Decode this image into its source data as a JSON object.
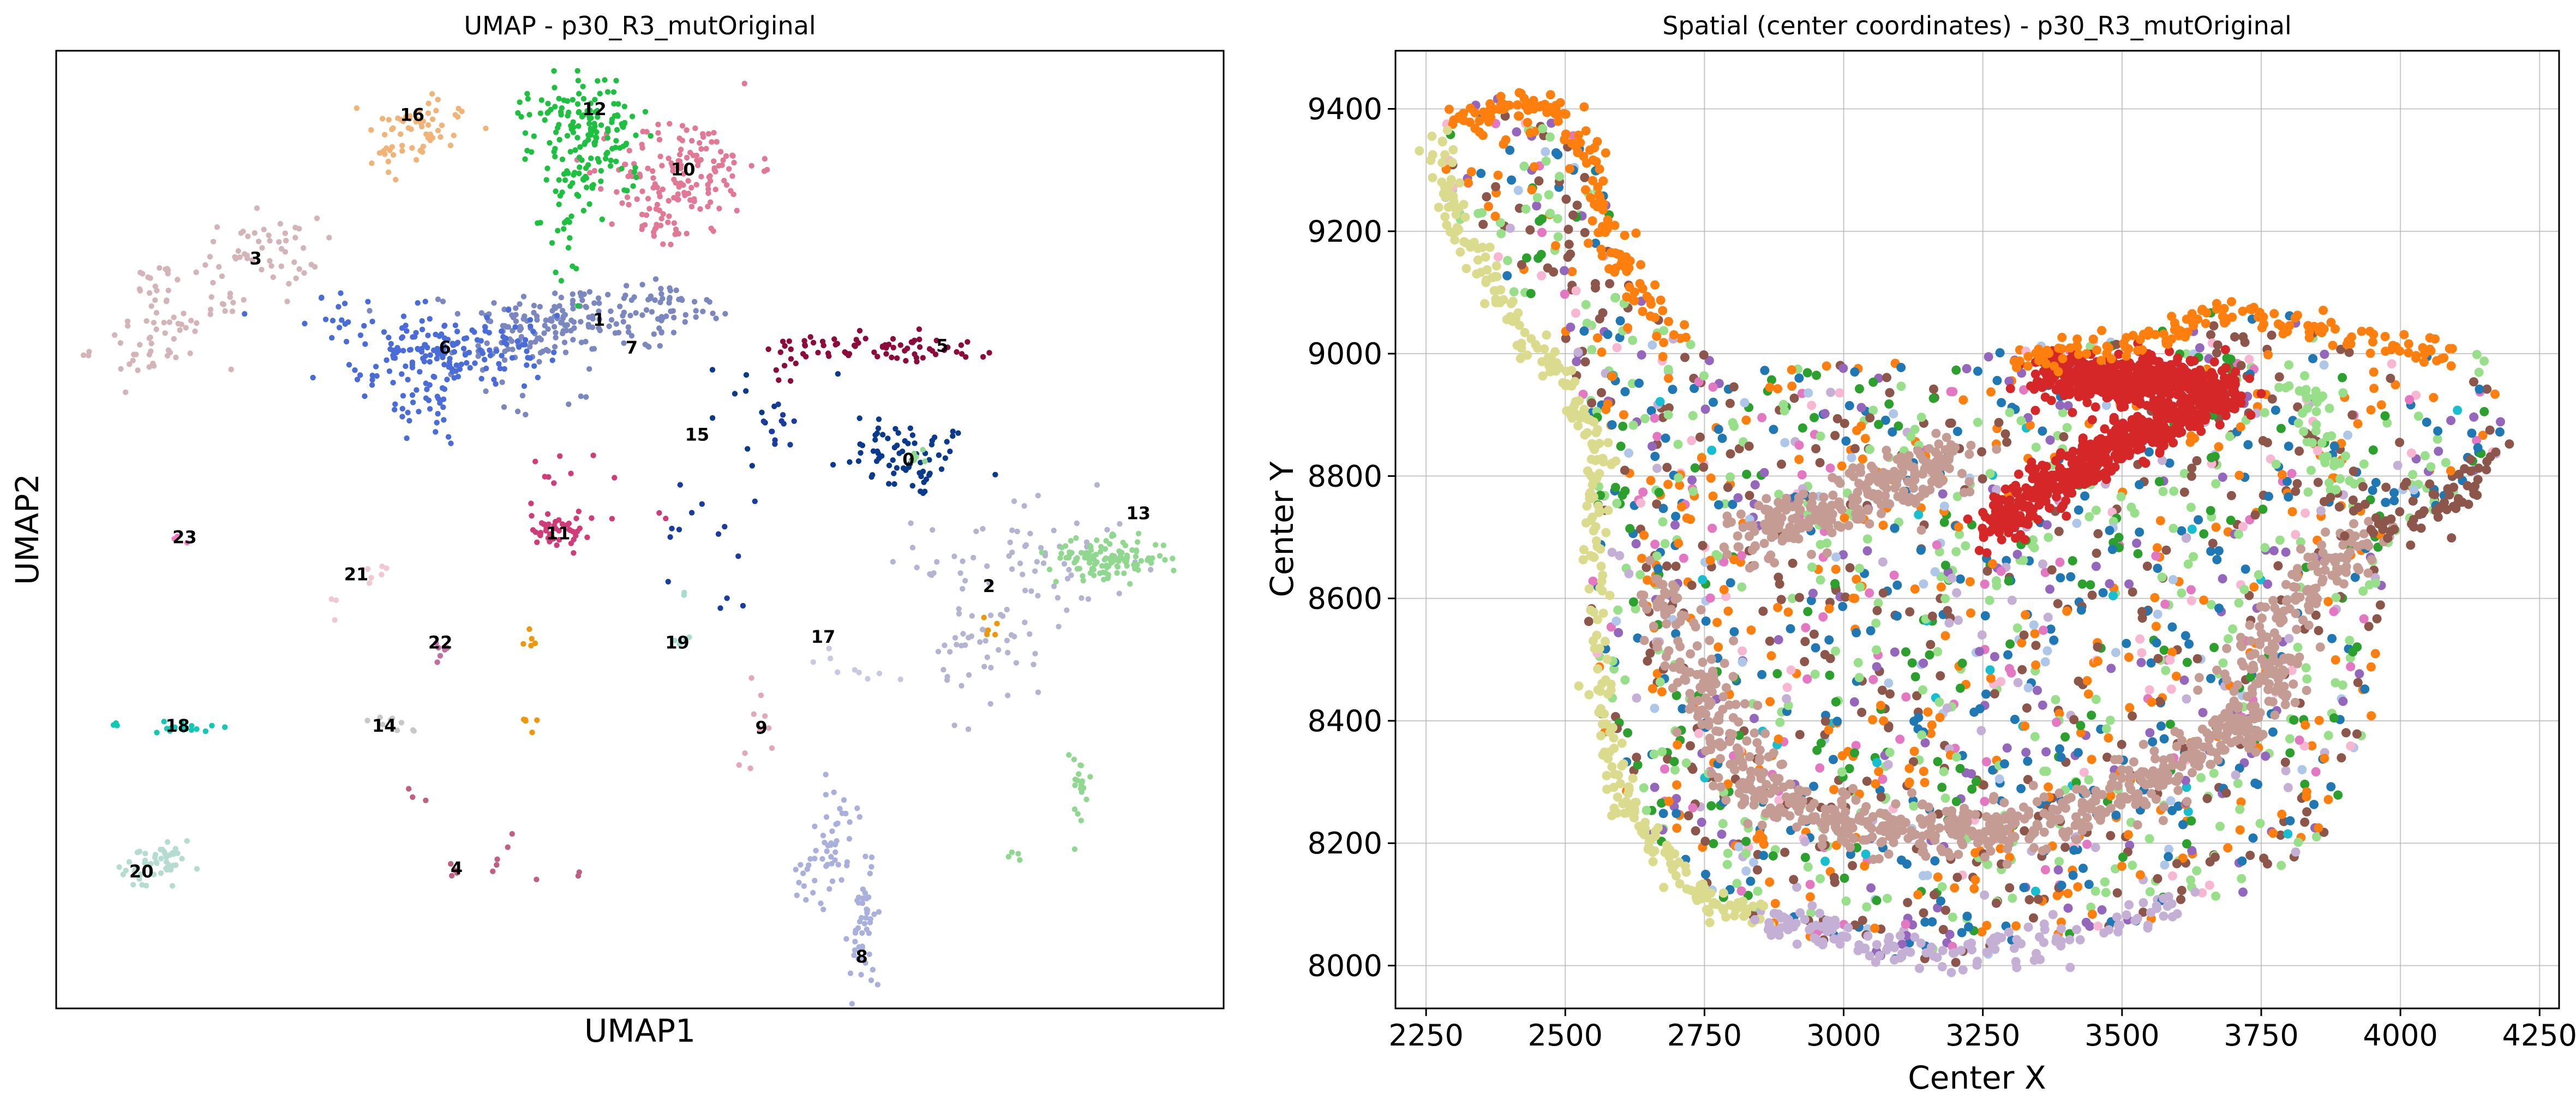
{
  "chart_data": [
    {
      "type": "scatter",
      "title": "UMAP - p30_R3_mutOriginal",
      "xlabel": "UMAP1",
      "ylabel": "UMAP2",
      "grid": false,
      "ticks": false,
      "cluster_labels": [
        {
          "label": "16",
          "x": 0.305,
          "y": 0.932
        },
        {
          "label": "12",
          "x": 0.461,
          "y": 0.938
        },
        {
          "label": "10",
          "x": 0.537,
          "y": 0.875
        },
        {
          "label": "3",
          "x": 0.171,
          "y": 0.782
        },
        {
          "label": "1",
          "x": 0.465,
          "y": 0.718
        },
        {
          "label": "6",
          "x": 0.333,
          "y": 0.689
        },
        {
          "label": "7",
          "x": 0.493,
          "y": 0.689
        },
        {
          "label": "5",
          "x": 0.759,
          "y": 0.691
        },
        {
          "label": "15",
          "x": 0.549,
          "y": 0.598
        },
        {
          "label": "0",
          "x": 0.73,
          "y": 0.572
        },
        {
          "label": "23",
          "x": 0.11,
          "y": 0.491
        },
        {
          "label": "11",
          "x": 0.43,
          "y": 0.495
        },
        {
          "label": "13",
          "x": 0.927,
          "y": 0.516
        },
        {
          "label": "21",
          "x": 0.257,
          "y": 0.452
        },
        {
          "label": "2",
          "x": 0.799,
          "y": 0.44
        },
        {
          "label": "22",
          "x": 0.329,
          "y": 0.381
        },
        {
          "label": "19",
          "x": 0.532,
          "y": 0.381
        },
        {
          "label": "17",
          "x": 0.657,
          "y": 0.387
        },
        {
          "label": "18",
          "x": 0.104,
          "y": 0.294
        },
        {
          "label": "14",
          "x": 0.281,
          "y": 0.294
        },
        {
          "label": "9",
          "x": 0.604,
          "y": 0.292
        },
        {
          "label": "20",
          "x": 0.073,
          "y": 0.142
        },
        {
          "label": "4",
          "x": 0.343,
          "y": 0.145
        },
        {
          "label": "8",
          "x": 0.69,
          "y": 0.053
        }
      ],
      "clusters": [
        {
          "label": "0",
          "color": "#0a3a8c",
          "blobs": [
            [
              0.735,
              0.572,
              0.025,
              0.02,
              60
            ],
            [
              0.7,
              0.6,
              0.015,
              0.012,
              10
            ]
          ],
          "scatter": [
            [
              0.62,
              0.62,
              0.09,
              0.06,
              14
            ]
          ]
        },
        {
          "label": "1",
          "color": "#7b88c0",
          "blobs": [
            [
              0.43,
              0.72,
              0.04,
              0.018,
              120
            ],
            [
              0.385,
              0.69,
              0.03,
              0.012,
              40
            ]
          ],
          "scatter": [
            [
              0.42,
              0.65,
              0.04,
              0.03,
              10
            ]
          ]
        },
        {
          "label": "2",
          "color": "#b4b4d2",
          "blobs": [
            [
              0.83,
              0.465,
              0.045,
              0.035,
              70
            ],
            [
              0.795,
              0.39,
              0.025,
              0.015,
              20
            ]
          ],
          "scatter": [
            [
              0.8,
              0.35,
              0.05,
              0.06,
              20
            ]
          ]
        },
        {
          "label": "3",
          "color": "#d2b4b9",
          "blobs": [
            [
              0.175,
              0.79,
              0.025,
              0.018,
              50
            ],
            [
              0.08,
              0.69,
              0.025,
              0.02,
              40
            ]
          ],
          "scatter": [
            [
              0.12,
              0.745,
              0.05,
              0.03,
              40
            ]
          ]
        },
        {
          "label": "4",
          "color": "#c06080",
          "blobs": [
            [
              0.343,
              0.145,
              0.004,
              0.004,
              4
            ]
          ],
          "scatter": [
            [
              0.41,
              0.16,
              0.06,
              0.03,
              8
            ],
            [
              0.31,
              0.22,
              0.01,
              0.01,
              3
            ]
          ]
        },
        {
          "label": "5",
          "color": "#8c0a3c",
          "blobs": [
            [
              0.72,
              0.69,
              0.04,
              0.01,
              50
            ]
          ],
          "scatter": [
            [
              0.65,
              0.69,
              0.03,
              0.012,
              20
            ],
            [
              0.625,
              0.67,
              0.01,
              0.015,
              6
            ]
          ]
        },
        {
          "label": "6",
          "color": "#4a6cd8",
          "blobs": [
            [
              0.335,
              0.69,
              0.045,
              0.016,
              150
            ],
            [
              0.31,
              0.65,
              0.03,
              0.025,
              40
            ]
          ],
          "scatter": [
            [
              0.23,
              0.73,
              0.02,
              0.02,
              10
            ],
            [
              0.32,
              0.61,
              0.025,
              0.02,
              12
            ]
          ]
        },
        {
          "label": "7",
          "color": "#7b88c0",
          "blobs": [
            [
              0.525,
              0.735,
              0.02,
              0.014,
              50
            ]
          ],
          "scatter": [
            [
              0.5,
              0.7,
              0.02,
              0.012,
              10
            ]
          ]
        },
        {
          "label": "8",
          "color": "#aab0dc",
          "blobs": [
            [
              0.69,
              0.08,
              0.006,
              0.035,
              50
            ],
            [
              0.665,
              0.15,
              0.012,
              0.025,
              30
            ],
            [
              0.67,
              0.2,
              0.01,
              0.02,
              15
            ]
          ],
          "scatter": [
            [
              0.64,
              0.13,
              0.01,
              0.03,
              8
            ]
          ]
        },
        {
          "label": "9",
          "color": "#e0a8b8",
          "blobs": [
            [
              0.604,
              0.31,
              0.008,
              0.02,
              8
            ]
          ],
          "scatter": [
            [
              0.59,
              0.26,
              0.006,
              0.015,
              3
            ]
          ]
        },
        {
          "label": "10",
          "color": "#e07896",
          "blobs": [
            [
              0.54,
              0.88,
              0.03,
              0.025,
              120
            ],
            [
              0.51,
              0.83,
              0.015,
              0.02,
              30
            ]
          ],
          "scatter": [
            [
              0.54,
              0.83,
              0.03,
              0.03,
              15
            ]
          ]
        },
        {
          "label": "11",
          "color": "#d03c78",
          "blobs": [
            [
              0.43,
              0.5,
              0.012,
              0.01,
              40
            ]
          ],
          "scatter": [
            [
              0.44,
              0.54,
              0.04,
              0.04,
              16
            ],
            [
              0.52,
              0.51,
              0.005,
              0.01,
              2
            ]
          ]
        },
        {
          "label": "12",
          "color": "#1ec040",
          "blobs": [
            [
              0.455,
              0.92,
              0.025,
              0.03,
              150
            ],
            [
              0.44,
              0.83,
              0.012,
              0.03,
              30
            ]
          ],
          "scatter": [
            [
              0.46,
              0.88,
              0.03,
              0.04,
              15
            ]
          ]
        },
        {
          "label": "13",
          "color": "#90d890",
          "blobs": [
            [
              0.9,
              0.47,
              0.025,
              0.01,
              120
            ],
            [
              0.875,
              0.225,
              0.006,
              0.025,
              20
            ]
          ],
          "scatter": [
            [
              0.82,
              0.16,
              0.006,
              0.006,
              4
            ],
            [
              0.74,
              0.58,
              0.01,
              0.01,
              6
            ]
          ]
        },
        {
          "label": "14",
          "color": "#c8c8c8",
          "blobs": [
            [
              0.281,
              0.3,
              0.01,
              0.01,
              6
            ]
          ],
          "scatter": [
            [
              0.3,
              0.29,
              0.02,
              0.01,
              3
            ]
          ]
        },
        {
          "label": "15",
          "color": "#1a3ca0",
          "blobs": [
            [
              0.62,
              0.61,
              0.008,
              0.015,
              10
            ]
          ],
          "scatter": [
            [
              0.56,
              0.48,
              0.04,
              0.08,
              14
            ]
          ]
        },
        {
          "label": "16",
          "color": "#f0b478",
          "blobs": [
            [
              0.315,
              0.92,
              0.02,
              0.014,
              45
            ],
            [
              0.285,
              0.895,
              0.008,
              0.01,
              10
            ]
          ],
          "scatter": [
            [
              0.3,
              0.9,
              0.02,
              0.015,
              8
            ]
          ]
        },
        {
          "label": "17",
          "color": "#c8c8e0",
          "blobs": [
            [
              0.657,
              0.36,
              0.01,
              0.01,
              4
            ]
          ],
          "scatter": [
            [
              0.7,
              0.35,
              0.03,
              0.03,
              5
            ]
          ]
        },
        {
          "label": "18",
          "color": "#10c8b4",
          "blobs": [
            [
              0.11,
              0.294,
              0.012,
              0.004,
              18
            ],
            [
              0.048,
              0.297,
              0.003,
              0.003,
              3
            ]
          ],
          "scatter": []
        },
        {
          "label": "19",
          "color": "#a8dcd0",
          "blobs": [
            [
              0.532,
              0.381,
              0.006,
              0.005,
              5
            ]
          ],
          "scatter": [
            [
              0.54,
              0.43,
              0.004,
              0.01,
              2
            ]
          ]
        },
        {
          "label": "20",
          "color": "#b4dcd0",
          "blobs": [
            [
              0.085,
              0.145,
              0.018,
              0.012,
              40
            ]
          ],
          "scatter": [
            [
              0.095,
              0.165,
              0.01,
              0.01,
              10
            ]
          ]
        },
        {
          "label": "21",
          "color": "#f0c8d4",
          "blobs": [
            [
              0.28,
              0.46,
              0.01,
              0.006,
              6
            ]
          ],
          "scatter": [
            [
              0.24,
              0.42,
              0.006,
              0.015,
              3
            ]
          ]
        },
        {
          "label": "22",
          "color": "#c070a0",
          "blobs": [
            [
              0.329,
              0.37,
              0.006,
              0.008,
              6
            ]
          ],
          "scatter": []
        },
        {
          "label": "23",
          "color": "#ff78c8",
          "blobs": [
            [
              0.11,
              0.491,
              0.004,
              0.003,
              3
            ]
          ],
          "scatter": []
        },
        {
          "label": "orange",
          "color": "#f0960a",
          "blobs": [
            [
              0.405,
              0.385,
              0.004,
              0.006,
              5
            ],
            [
              0.405,
              0.295,
              0.004,
              0.006,
              5
            ],
            [
              0.795,
              0.395,
              0.006,
              0.008,
              5
            ]
          ],
          "scatter": []
        }
      ]
    },
    {
      "type": "scatter",
      "title": "Spatial (center coordinates) - p30_R3_mutOriginal",
      "xlabel": "Center X",
      "ylabel": "Center Y",
      "xlim": [
        2195,
        4285
      ],
      "ylim": [
        7930,
        9495
      ],
      "xticks": [
        2250,
        2500,
        2750,
        3000,
        3250,
        3500,
        3750,
        4000,
        4250
      ],
      "yticks": [
        8000,
        8200,
        8400,
        8600,
        8800,
        9000,
        9200,
        9400
      ],
      "xtick_labels": [
        "2250",
        "2500",
        "2750",
        "3000",
        "3250",
        "3500",
        "3750",
        "4000",
        "4250"
      ],
      "ytick_labels": [
        "8000",
        "8200",
        "8400",
        "8600",
        "8800",
        "9000",
        "9200",
        "9400"
      ],
      "grid": true,
      "categories": [
        {
          "color": "#1f77b4",
          "name": ""
        },
        {
          "color": "#ff7f0e",
          "name": ""
        },
        {
          "color": "#2ca02c",
          "name": ""
        },
        {
          "color": "#d62728",
          "name": ""
        },
        {
          "color": "#9467bd",
          "name": ""
        },
        {
          "color": "#8c564b",
          "name": ""
        },
        {
          "color": "#e377c2",
          "name": ""
        },
        {
          "color": "#c49c94",
          "name": ""
        },
        {
          "color": "#98df8a",
          "name": ""
        },
        {
          "color": "#dbdb8d",
          "name": ""
        },
        {
          "color": "#aec7e8",
          "name": ""
        },
        {
          "color": "#c5b0d5",
          "name": ""
        },
        {
          "color": "#f7b6d2",
          "name": ""
        },
        {
          "color": "#17becf",
          "name": ""
        }
      ],
      "tissue_outline": [
        [
          2260,
          9340
        ],
        [
          2290,
          9400
        ],
        [
          2350,
          9420
        ],
        [
          2450,
          9420
        ],
        [
          2530,
          9390
        ],
        [
          2560,
          9300
        ],
        [
          2600,
          9150
        ],
        [
          2680,
          9040
        ],
        [
          2780,
          8990
        ],
        [
          2950,
          8985
        ],
        [
          3150,
          8990
        ],
        [
          3400,
          9020
        ],
        [
          3600,
          9060
        ],
        [
          3760,
          9080
        ],
        [
          3900,
          9020
        ],
        [
          4000,
          8995
        ],
        [
          4150,
          9000
        ],
        [
          4200,
          8860
        ],
        [
          4100,
          8760
        ],
        [
          3980,
          8700
        ],
        [
          3960,
          8560
        ],
        [
          3950,
          8400
        ],
        [
          3860,
          8200
        ],
        [
          3700,
          8110
        ],
        [
          3500,
          8060
        ],
        [
          3300,
          8010
        ],
        [
          3100,
          8000
        ],
        [
          2950,
          8040
        ],
        [
          2800,
          8080
        ],
        [
          2700,
          8160
        ],
        [
          2610,
          8260
        ],
        [
          2560,
          8400
        ],
        [
          2540,
          8560
        ],
        [
          2550,
          8720
        ],
        [
          2560,
          8870
        ],
        [
          2520,
          8960
        ],
        [
          2440,
          9060
        ],
        [
          2350,
          9170
        ],
        [
          2280,
          9260
        ]
      ]
    }
  ]
}
